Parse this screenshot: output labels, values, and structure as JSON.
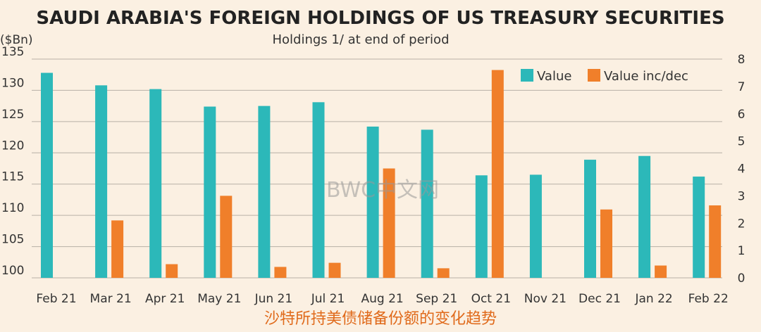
{
  "title": "SAUDI ARABIA'S FOREIGN HOLDINGS OF US TREASURY SECURITIES",
  "subtitle": "Holdings 1/ at end of period",
  "watermark": "BWC中文网",
  "caption": "沙特所持美债储备份额的变化趋势",
  "chart_data": {
    "type": "bar",
    "categories": [
      "Feb 21",
      "Mar 21",
      "Apr 21",
      "May 21",
      "Jun 21",
      "Jul 21",
      "Aug 21",
      "Sep 21",
      "Oct 21",
      "Nov 21",
      "Dec 21",
      "Jan 22",
      "Feb 22"
    ],
    "left_axis": {
      "label": "($Bn)",
      "ylim": [
        100,
        135
      ],
      "ticks": [
        100,
        105,
        110,
        115,
        120,
        125,
        130,
        135
      ]
    },
    "right_axis": {
      "ylim": [
        0,
        8
      ],
      "ticks": [
        0,
        1,
        2,
        3,
        4,
        5,
        6,
        7,
        8
      ]
    },
    "series": [
      {
        "name": "Value",
        "axis": "left",
        "color": "#2cb8b9",
        "values": [
          132.8,
          130.8,
          130.2,
          127.4,
          127.5,
          128.1,
          124.2,
          123.7,
          116.4,
          116.5,
          118.9,
          119.5,
          116.2
        ]
      },
      {
        "name": "Value inc/dec",
        "axis": "right",
        "color": "#f07f2a",
        "values": [
          null,
          2.1,
          0.5,
          3.0,
          0.4,
          0.55,
          4.0,
          0.35,
          7.6,
          null,
          2.5,
          0.45,
          2.65
        ]
      }
    ],
    "legend_position": "top-right",
    "grid": true
  }
}
